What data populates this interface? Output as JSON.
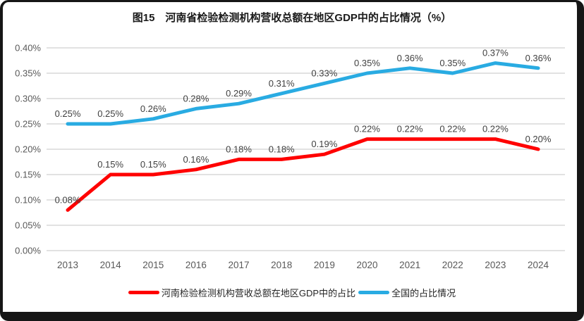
{
  "frame": {
    "border_color": "#161616",
    "background": "#ffffff"
  },
  "chart_data": {
    "type": "line",
    "title": "图15　河南省检验检测机构营收总额在地区GDP中的占比情况（%）",
    "categories": [
      "2013",
      "2014",
      "2015",
      "2016",
      "2017",
      "2018",
      "2019",
      "2020",
      "2021",
      "2022",
      "2023",
      "2024"
    ],
    "xlabel": "",
    "ylabel": "",
    "ylim": [
      0,
      0.4
    ],
    "y_ticks": [
      "0.00%",
      "0.05%",
      "0.10%",
      "0.15%",
      "0.20%",
      "0.25%",
      "0.30%",
      "0.35%",
      "0.40%"
    ],
    "grid": true,
    "legend_position": "bottom",
    "series": [
      {
        "name": "河南检验检测机构营收总额在地区GDP中的占比",
        "color": "#FF0000",
        "values": [
          0.08,
          0.15,
          0.15,
          0.16,
          0.18,
          0.18,
          0.19,
          0.22,
          0.22,
          0.22,
          0.22,
          0.2
        ],
        "labels": [
          "0.08%",
          "0.15%",
          "0.15%",
          "0.16%",
          "0.18%",
          "0.18%",
          "0.19%",
          "0.22%",
          "0.22%",
          "0.22%",
          "0.22%",
          "0.20%"
        ]
      },
      {
        "name": "全国的占比情况",
        "color": "#29ABE2",
        "values": [
          0.25,
          0.25,
          0.26,
          0.28,
          0.29,
          0.31,
          0.33,
          0.35,
          0.36,
          0.35,
          0.37,
          0.36
        ],
        "labels": [
          "0.25%",
          "0.25%",
          "0.26%",
          "0.28%",
          "0.29%",
          "0.31%",
          "0.33%",
          "0.35%",
          "0.36%",
          "0.35%",
          "0.37%",
          "0.36%"
        ]
      }
    ],
    "style": {
      "gridline_color": "#D9D9D9",
      "axis_text_color": "#595959",
      "data_label_color": "#404040",
      "title_color": "#1a1a1a"
    }
  }
}
